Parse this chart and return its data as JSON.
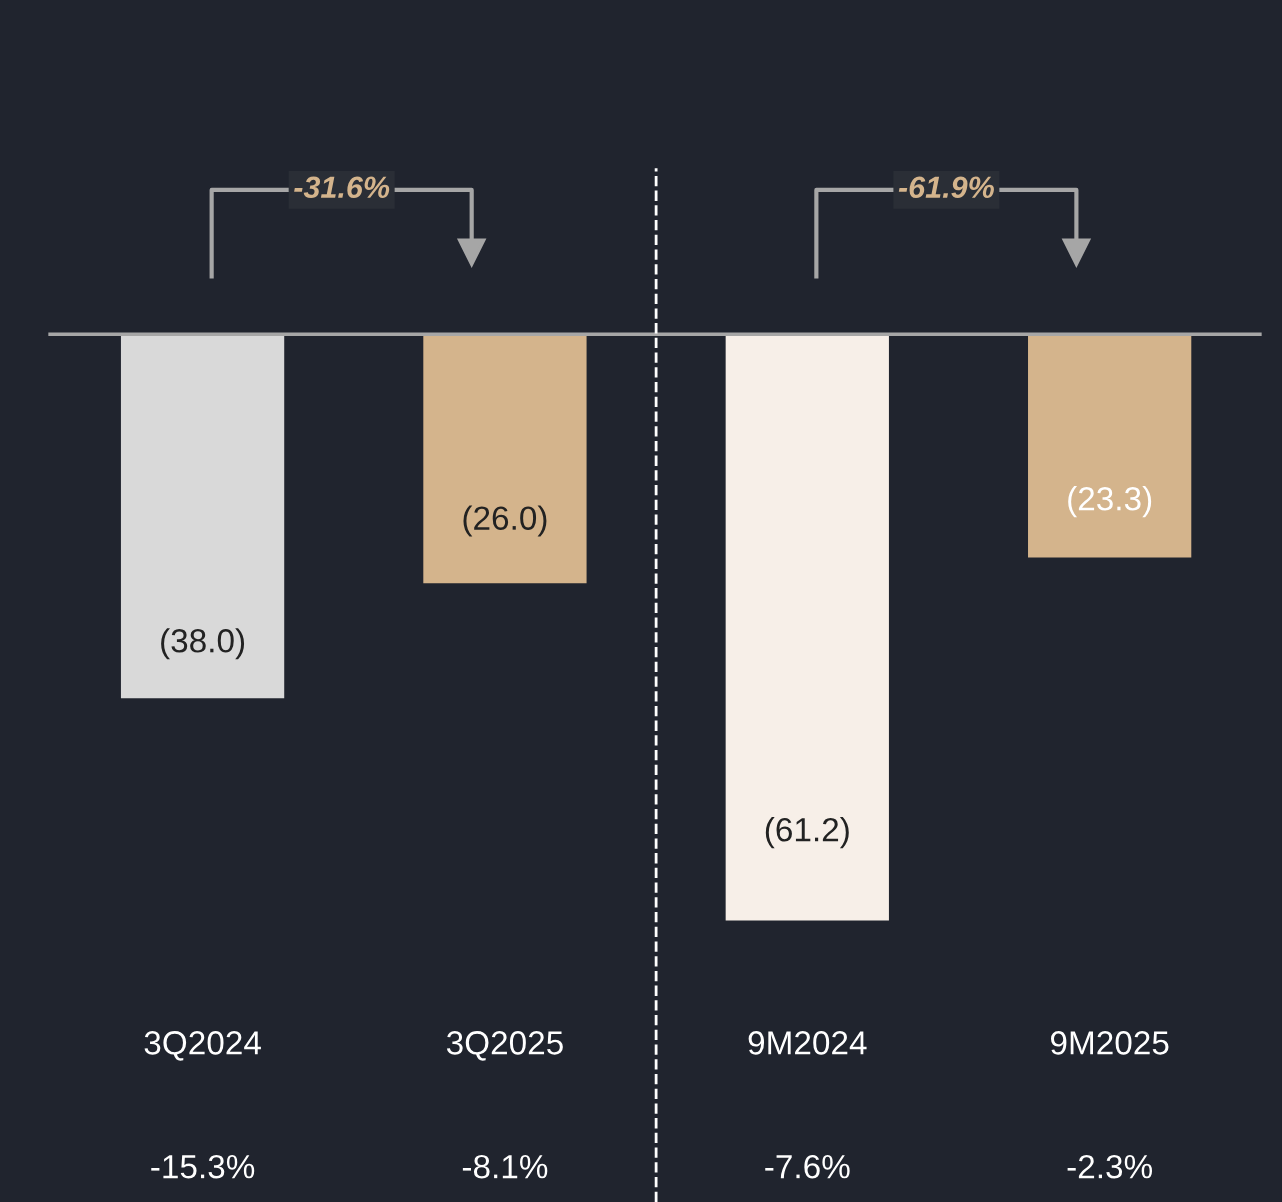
{
  "chart_data": {
    "type": "bar",
    "categories": [
      "3Q2024",
      "3Q2025",
      "9M2024",
      "9M2025"
    ],
    "values": [
      -38.0,
      -26.0,
      -61.2,
      -23.3
    ],
    "colors": [
      "#d9d9d9",
      "#d4b48c",
      "#f7efe8",
      "#d4b48c"
    ],
    "value_labels": [
      "(38.0)",
      "(26.0)",
      "(61.2)",
      "(23.3)"
    ],
    "annotations": [
      "-31.6%",
      "-61.9%",
      "-15.3%",
      "-8.1%",
      "-7.6%",
      "-2.3%"
    ]
  }
}
